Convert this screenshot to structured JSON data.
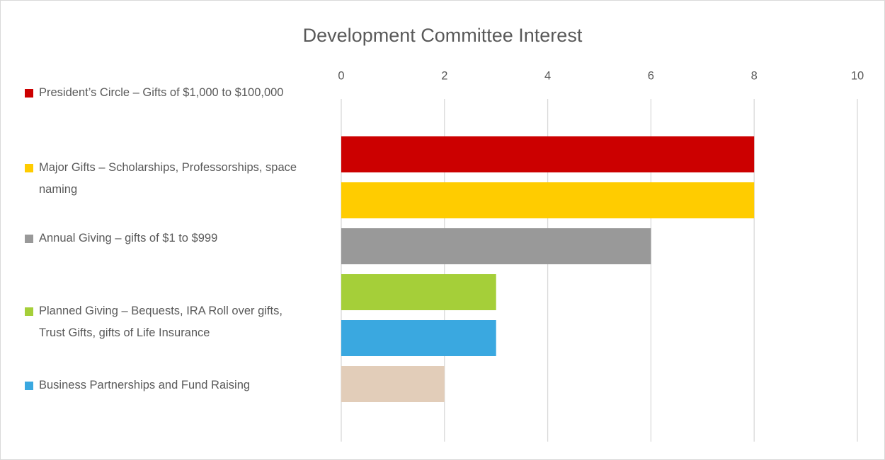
{
  "chart_data": {
    "type": "bar",
    "orientation": "horizontal",
    "title": "Development Committee Interest",
    "series": [
      {
        "name": "President’s Circle – Gifts of $1,000 to $100,000",
        "color": "#cc0000",
        "values": [
          8
        ]
      },
      {
        "name": "Major Gifts – Scholarships, Professorships, space naming",
        "color": "#ffcc00",
        "values": [
          8
        ]
      },
      {
        "name": "Annual Giving – gifts of $1 to $999",
        "color": "#999999",
        "values": [
          6
        ]
      },
      {
        "name": "Planned Giving – Bequests, IRA Roll over gifts, Trust Gifts, gifts of Life Insurance",
        "color": "#a5cf39",
        "values": [
          3
        ]
      },
      {
        "name": "Business Partnerships and Fund Raising",
        "color": "#3aa8e0",
        "values": [
          3
        ]
      },
      {
        "name": null,
        "color": "#e2cdb9",
        "values": [
          2
        ]
      }
    ],
    "xlim": [
      0,
      10
    ],
    "xticks": [
      0,
      2,
      4,
      6,
      8,
      10
    ],
    "grid": true,
    "legend": "left"
  }
}
